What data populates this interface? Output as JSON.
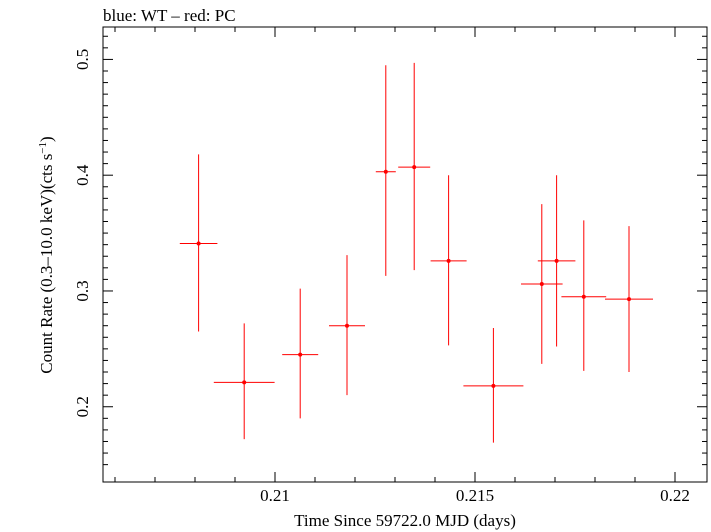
{
  "caption": "blue: WT – red: PC",
  "chart_data": {
    "type": "scatter",
    "xlabel": "Time Since 59722.0 MJD (days)",
    "ylabel_main": "Count Rate (0.3–10.0 keV)(cts s",
    "ylabel_sup": "−1",
    "ylabel_end": ")",
    "xlim": [
      0.2057,
      0.2208
    ],
    "ylim": [
      0.135,
      0.528
    ],
    "xticks": [
      0.21,
      0.215,
      0.22
    ],
    "xtick_labels": [
      "0.21",
      "0.215",
      "0.22"
    ],
    "yticks": [
      0.2,
      0.3,
      0.4,
      0.5
    ],
    "ytick_labels": [
      "0.2",
      "0.3",
      "0.4",
      "0.5"
    ],
    "grid": false,
    "series": [
      {
        "color": "#ff0000",
        "points": [
          {
            "x": 0.21704,
            "y": 0.326,
            "xerr": 0.00047,
            "ylo": 0.252,
            "yhi": 0.4
          },
          {
            "x": 0.20809,
            "y": 0.341,
            "xerr": 0.00047,
            "ylo": 0.265,
            "yhi": 0.418
          },
          {
            "x": 0.20923,
            "y": 0.221,
            "xerr": 0.00076,
            "ylo": 0.172,
            "yhi": 0.272
          },
          {
            "x": 0.21063,
            "y": 0.245,
            "xerr": 0.00045,
            "ylo": 0.19,
            "yhi": 0.302
          },
          {
            "x": 0.2118,
            "y": 0.27,
            "xerr": 0.00045,
            "ylo": 0.21,
            "yhi": 0.331
          },
          {
            "x": 0.21277,
            "y": 0.403,
            "xerr": 0.00025,
            "ylo": 0.313,
            "yhi": 0.495
          },
          {
            "x": 0.21348,
            "y": 0.407,
            "xerr": 0.0004,
            "ylo": 0.318,
            "yhi": 0.497
          },
          {
            "x": 0.21434,
            "y": 0.326,
            "xerr": 0.00045,
            "ylo": 0.253,
            "yhi": 0.4
          },
          {
            "x": 0.21546,
            "y": 0.218,
            "xerr": 0.00075,
            "ylo": 0.169,
            "yhi": 0.268
          },
          {
            "x": 0.21667,
            "y": 0.306,
            "xerr": 0.00052,
            "ylo": 0.237,
            "yhi": 0.375
          },
          {
            "x": 0.21772,
            "y": 0.295,
            "xerr": 0.00056,
            "ylo": 0.231,
            "yhi": 0.361
          },
          {
            "x": 0.21885,
            "y": 0.293,
            "xerr": 0.0006,
            "ylo": 0.23,
            "yhi": 0.356
          }
        ]
      }
    ]
  }
}
